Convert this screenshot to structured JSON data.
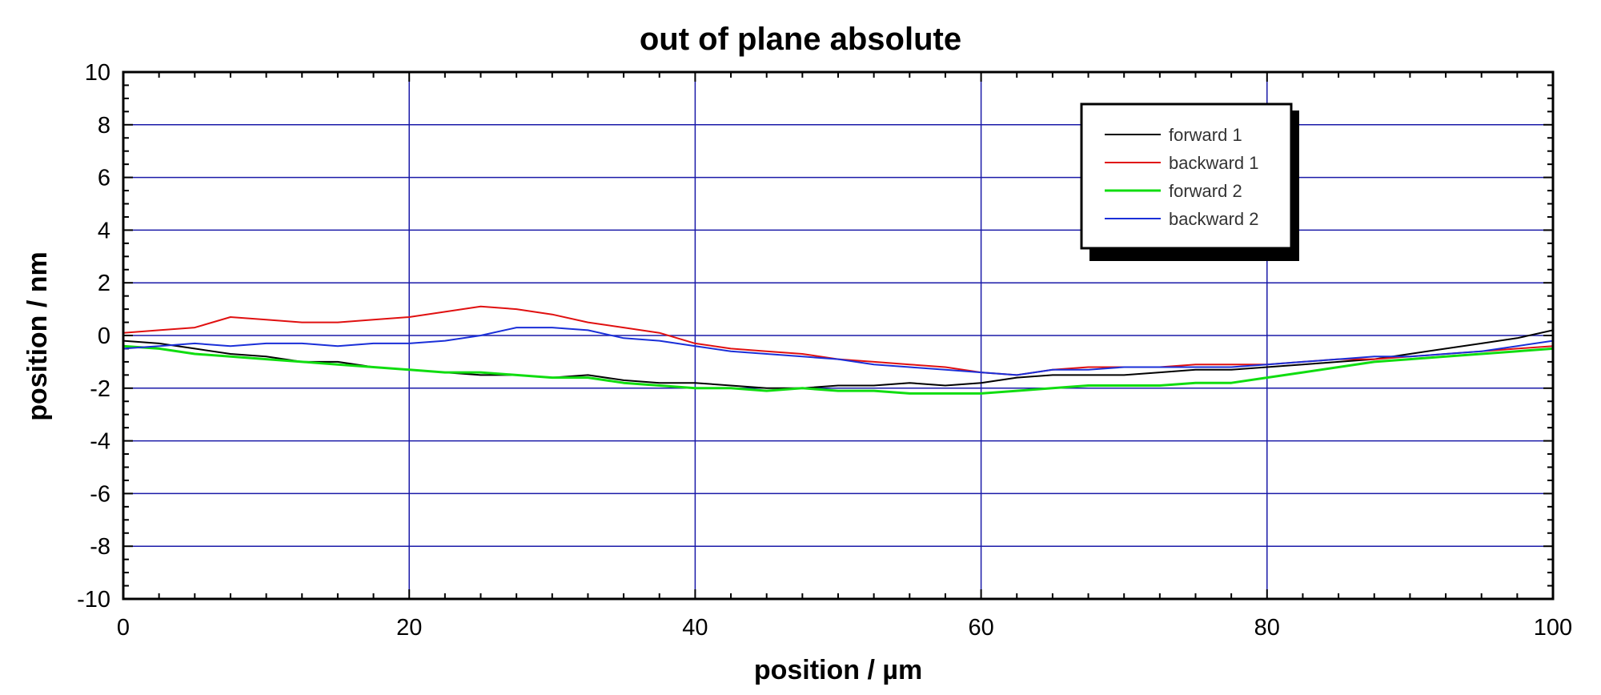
{
  "chart_data": {
    "type": "line",
    "title": "out of plane absolute",
    "xlabel": "position  / µm",
    "ylabel": "position  / nm",
    "xlim": [
      0,
      100
    ],
    "ylim": [
      -10,
      10
    ],
    "xticks": [
      0,
      20,
      40,
      60,
      80,
      100
    ],
    "yticks": [
      -10,
      -8,
      -6,
      -4,
      -2,
      0,
      2,
      4,
      6,
      8,
      10
    ],
    "xtick_labels": [
      "0",
      "20",
      "40",
      "60",
      "80",
      "100"
    ],
    "ytick_labels": [
      "-10",
      "-8",
      "-6",
      "-4",
      "-2",
      "0",
      "2",
      "4",
      "6",
      "8",
      "10"
    ],
    "grid": true,
    "grid_color": "#1a1aa8",
    "legend_position": "top-right",
    "x": [
      0,
      2.5,
      5,
      7.5,
      10,
      12.5,
      15,
      17.5,
      20,
      22.5,
      25,
      27.5,
      30,
      32.5,
      35,
      37.5,
      40,
      42.5,
      45,
      47.5,
      50,
      52.5,
      55,
      57.5,
      60,
      62.5,
      65,
      67.5,
      70,
      72.5,
      75,
      77.5,
      80,
      82.5,
      85,
      87.5,
      90,
      92.5,
      95,
      97.5,
      100
    ],
    "series": [
      {
        "name": "forward 1",
        "color": "#000000",
        "values": [
          -0.2,
          -0.3,
          -0.5,
          -0.7,
          -0.8,
          -1.0,
          -1.0,
          -1.2,
          -1.3,
          -1.4,
          -1.5,
          -1.5,
          -1.6,
          -1.5,
          -1.7,
          -1.8,
          -1.8,
          -1.9,
          -2.0,
          -2.0,
          -1.9,
          -1.9,
          -1.8,
          -1.9,
          -1.8,
          -1.6,
          -1.5,
          -1.5,
          -1.5,
          -1.4,
          -1.3,
          -1.3,
          -1.2,
          -1.1,
          -1.0,
          -0.9,
          -0.7,
          -0.5,
          -0.3,
          -0.1,
          0.2
        ]
      },
      {
        "name": "backward 1",
        "color": "#e01010",
        "values": [
          0.1,
          0.2,
          0.3,
          0.7,
          0.6,
          0.5,
          0.5,
          0.6,
          0.7,
          0.9,
          1.1,
          1.0,
          0.8,
          0.5,
          0.3,
          0.1,
          -0.3,
          -0.5,
          -0.6,
          -0.7,
          -0.9,
          -1.0,
          -1.1,
          -1.2,
          -1.4,
          -1.5,
          -1.3,
          -1.2,
          -1.2,
          -1.2,
          -1.1,
          -1.1,
          -1.1,
          -1.0,
          -0.9,
          -0.9,
          -0.8,
          -0.7,
          -0.6,
          -0.5,
          -0.4
        ]
      },
      {
        "name": "forward 2",
        "color": "#10dd10",
        "values": [
          -0.4,
          -0.5,
          -0.7,
          -0.8,
          -0.9,
          -1.0,
          -1.1,
          -1.2,
          -1.3,
          -1.4,
          -1.4,
          -1.5,
          -1.6,
          -1.6,
          -1.8,
          -1.9,
          -2.0,
          -2.0,
          -2.1,
          -2.0,
          -2.1,
          -2.1,
          -2.2,
          -2.2,
          -2.2,
          -2.1,
          -2.0,
          -1.9,
          -1.9,
          -1.9,
          -1.8,
          -1.8,
          -1.6,
          -1.4,
          -1.2,
          -1.0,
          -0.9,
          -0.8,
          -0.7,
          -0.6,
          -0.5
        ]
      },
      {
        "name": "backward 2",
        "color": "#1a2fd8",
        "values": [
          -0.5,
          -0.4,
          -0.3,
          -0.4,
          -0.3,
          -0.3,
          -0.4,
          -0.3,
          -0.3,
          -0.2,
          0.0,
          0.3,
          0.3,
          0.2,
          -0.1,
          -0.2,
          -0.4,
          -0.6,
          -0.7,
          -0.8,
          -0.9,
          -1.1,
          -1.2,
          -1.3,
          -1.4,
          -1.5,
          -1.3,
          -1.3,
          -1.2,
          -1.2,
          -1.2,
          -1.2,
          -1.1,
          -1.0,
          -0.9,
          -0.8,
          -0.8,
          -0.7,
          -0.6,
          -0.4,
          -0.2
        ]
      }
    ]
  }
}
